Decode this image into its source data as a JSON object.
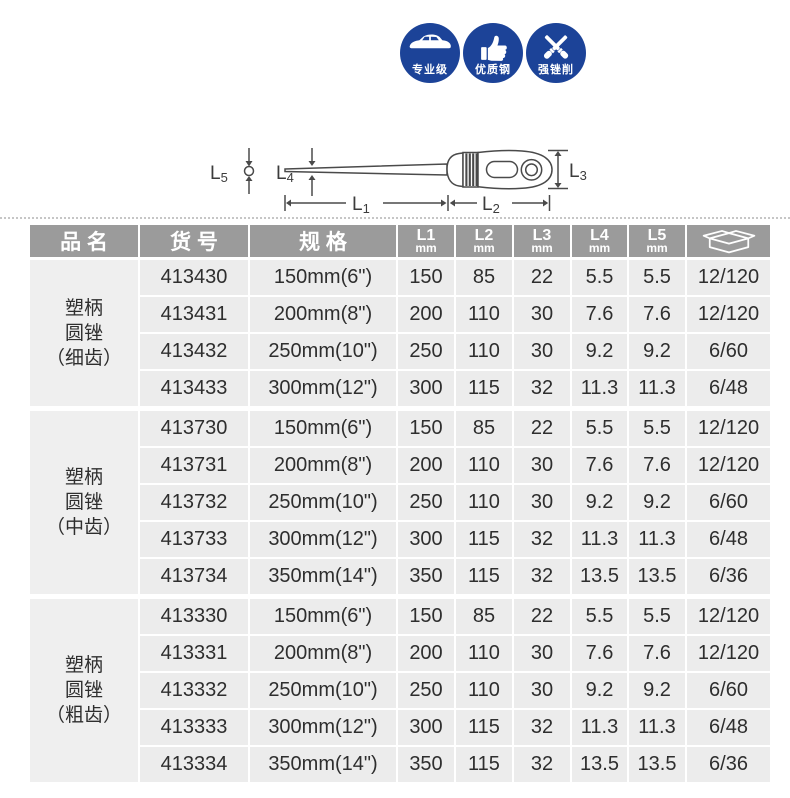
{
  "colors": {
    "badge_blue": "#1c4398",
    "header_gray": "#9b9b9b",
    "cell_gray": "#ececec"
  },
  "badges": [
    {
      "icon": "car-icon",
      "label": "专业级"
    },
    {
      "icon": "thumb-up-icon",
      "label": "优质钢"
    },
    {
      "icon": "crossed-files-icon",
      "label": "强锉削"
    }
  ],
  "diagram": {
    "l1": {
      "letter": "L",
      "sub": "1"
    },
    "l2": {
      "letter": "L",
      "sub": "2"
    },
    "l3": {
      "letter": "L",
      "sub": "3"
    },
    "l4": {
      "letter": "L",
      "sub": "4"
    },
    "l5": {
      "letter": "L",
      "sub": "5"
    }
  },
  "table": {
    "header": {
      "product": "品 名",
      "item_no": "货 号",
      "spec": "规 格",
      "dims": [
        {
          "top": "L1",
          "unit": "mm"
        },
        {
          "top": "L2",
          "unit": "mm"
        },
        {
          "top": "L3",
          "unit": "mm"
        },
        {
          "top": "L4",
          "unit": "mm"
        },
        {
          "top": "L5",
          "unit": "mm"
        }
      ],
      "packing_icon": "carton-box-icon"
    },
    "groups": [
      {
        "name_lines": [
          "塑柄",
          "圆锉",
          "（细齿）"
        ],
        "rows": [
          [
            "413430",
            "150mm(6\")",
            "150",
            "85",
            "22",
            "5.5",
            "5.5",
            "12/120"
          ],
          [
            "413431",
            "200mm(8\")",
            "200",
            "110",
            "30",
            "7.6",
            "7.6",
            "12/120"
          ],
          [
            "413432",
            "250mm(10\")",
            "250",
            "110",
            "30",
            "9.2",
            "9.2",
            "6/60"
          ],
          [
            "413433",
            "300mm(12\")",
            "300",
            "115",
            "32",
            "11.3",
            "11.3",
            "6/48"
          ]
        ]
      },
      {
        "name_lines": [
          "塑柄",
          "圆锉",
          "（中齿）"
        ],
        "rows": [
          [
            "413730",
            "150mm(6\")",
            "150",
            "85",
            "22",
            "5.5",
            "5.5",
            "12/120"
          ],
          [
            "413731",
            "200mm(8\")",
            "200",
            "110",
            "30",
            "7.6",
            "7.6",
            "12/120"
          ],
          [
            "413732",
            "250mm(10\")",
            "250",
            "110",
            "30",
            "9.2",
            "9.2",
            "6/60"
          ],
          [
            "413733",
            "300mm(12\")",
            "300",
            "115",
            "32",
            "11.3",
            "11.3",
            "6/48"
          ],
          [
            "413734",
            "350mm(14\")",
            "350",
            "115",
            "32",
            "13.5",
            "13.5",
            "6/36"
          ]
        ]
      },
      {
        "name_lines": [
          "塑柄",
          "圆锉",
          "（粗齿）"
        ],
        "rows": [
          [
            "413330",
            "150mm(6\")",
            "150",
            "85",
            "22",
            "5.5",
            "5.5",
            "12/120"
          ],
          [
            "413331",
            "200mm(8\")",
            "200",
            "110",
            "30",
            "7.6",
            "7.6",
            "12/120"
          ],
          [
            "413332",
            "250mm(10\")",
            "250",
            "110",
            "30",
            "9.2",
            "9.2",
            "6/60"
          ],
          [
            "413333",
            "300mm(12\")",
            "300",
            "115",
            "32",
            "11.3",
            "11.3",
            "6/48"
          ],
          [
            "413334",
            "350mm(14\")",
            "350",
            "115",
            "32",
            "13.5",
            "13.5",
            "6/36"
          ]
        ]
      }
    ]
  }
}
